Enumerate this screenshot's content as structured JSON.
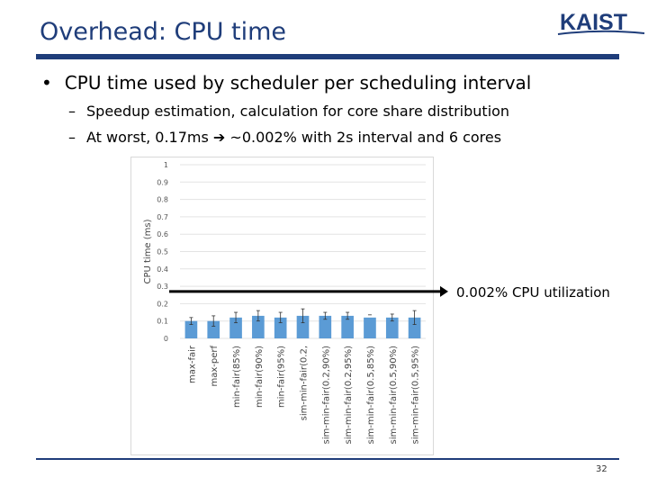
{
  "slide": {
    "title": "Overhead: CPU time",
    "bullet": "CPU time used by scheduler per scheduling interval",
    "sub1": "Speedup estimation, calculation for core share distribution",
    "sub2_before": "At worst, 0.17ms",
    "sub2_after": "~0.002% with 2s interval and 6 cores",
    "logo_text": "KAIST",
    "bullet_marker": "•",
    "dash_marker": "–",
    "arrow_glyph": "➔",
    "page_number": "32",
    "brand_color": "#1f3d7a"
  },
  "chart_data": {
    "type": "bar",
    "ylabel": "CPU time (ms)",
    "ylim": [
      0,
      1
    ],
    "yticks": [
      "0",
      "0.1",
      "0.2",
      "0.3",
      "0.4",
      "0.5",
      "0.6",
      "0.7",
      "0.8",
      "0.9",
      "1"
    ],
    "grid": true,
    "bar_color": "#5b9bd5",
    "categories": [
      "max-fair",
      "max-perf",
      "min-fair(85%)",
      "min-fair(90%)",
      "min-fair(95%)",
      "sim-min-fair(0.2,",
      "sim-min-fair(0.2,90%)",
      "sim-min-fair(0.2,95%)",
      "sim-min-fair(0.5,85%)",
      "sim-min-fair(0.5,90%)",
      "sim-min-fair(0.5,95%)"
    ],
    "values": [
      0.1,
      0.1,
      0.12,
      0.13,
      0.12,
      0.13,
      0.13,
      0.13,
      0.12,
      0.12,
      0.12
    ],
    "errors": [
      0.02,
      0.03,
      0.03,
      0.03,
      0.03,
      0.04,
      0.02,
      0.02,
      0.0,
      0.02,
      0.04
    ],
    "annotation": {
      "text": "0.002% CPU utilization",
      "y": 0.27
    }
  }
}
